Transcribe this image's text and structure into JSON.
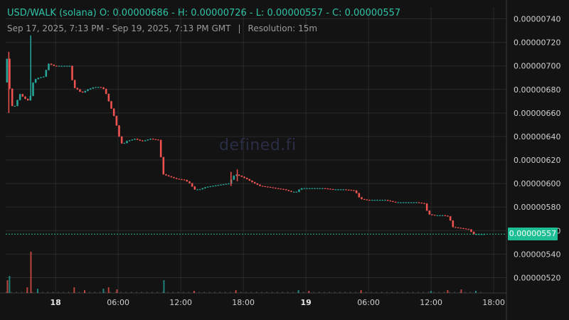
{
  "header": {
    "pair": "USD/WALK (solana)",
    "ohlc": "O: 0.00000686 - H: 0.00000726 - L: 0.00000557 - C: 0.00000557",
    "range": "Sep 17, 2025, 7:13 PM - Sep 19, 2025, 7:13 PM GMT",
    "separator": "|",
    "resolution": "Resolution: 15m"
  },
  "watermark": "defined.fi",
  "last_price_label": "0.00000557",
  "colors": {
    "up": "#26a69a",
    "down": "#ef5350",
    "bg": "#131313",
    "grid": "#2a2a2a",
    "tag": "#1fbf95"
  },
  "chart_data": {
    "type": "candlestick",
    "xlabels": [
      {
        "h": 4.78,
        "label": "18",
        "bold": true
      },
      {
        "h": 10.78,
        "label": "06:00"
      },
      {
        "h": 16.78,
        "label": "12:00"
      },
      {
        "h": 22.78,
        "label": "18:00"
      },
      {
        "h": 28.78,
        "label": "19",
        "bold": true
      },
      {
        "h": 34.78,
        "label": "06:00"
      },
      {
        "h": 40.78,
        "label": "12:00"
      },
      {
        "h": 46.78,
        "label": "18:00"
      }
    ],
    "yticks": [
      "0.00000520",
      "0.00000540",
      "0.00000560",
      "0.00000580",
      "0.00000600",
      "0.00000620",
      "0.00000640",
      "0.00000660",
      "0.00000680",
      "0.00000700",
      "0.00000720",
      "0.00000740"
    ],
    "ylim": [
      5.07e-06,
      7.5e-06
    ],
    "xlim_hours": [
      0,
      48
    ],
    "last_price": 5.57e-06,
    "anchors": [
      [
        0.0,
        6.86
      ],
      [
        0.3,
        7.1
      ],
      [
        0.6,
        6.66
      ],
      [
        1.0,
        6.66
      ],
      [
        1.5,
        6.76
      ],
      [
        2.0,
        6.72
      ],
      [
        2.4,
        6.7
      ],
      [
        2.8,
        6.88
      ],
      [
        3.3,
        6.9
      ],
      [
        3.8,
        6.91
      ],
      [
        4.2,
        7.02
      ],
      [
        4.8,
        7.0
      ],
      [
        5.5,
        7.0
      ],
      [
        6.3,
        7.0
      ],
      [
        6.6,
        6.82
      ],
      [
        7.0,
        6.8
      ],
      [
        7.4,
        6.77
      ],
      [
        8.0,
        6.8
      ],
      [
        8.6,
        6.82
      ],
      [
        9.2,
        6.82
      ],
      [
        9.6,
        6.8
      ],
      [
        10.2,
        6.65
      ],
      [
        10.6,
        6.55
      ],
      [
        11.0,
        6.4
      ],
      [
        11.3,
        6.33
      ],
      [
        11.7,
        6.36
      ],
      [
        12.5,
        6.38
      ],
      [
        13.2,
        6.36
      ],
      [
        14.0,
        6.38
      ],
      [
        14.8,
        6.37
      ],
      [
        15.2,
        6.08
      ],
      [
        15.8,
        6.06
      ],
      [
        16.5,
        6.04
      ],
      [
        17.3,
        6.03
      ],
      [
        17.8,
        6.0
      ],
      [
        18.2,
        5.95
      ],
      [
        18.7,
        5.95
      ],
      [
        19.3,
        5.97
      ],
      [
        20.0,
        5.98
      ],
      [
        20.7,
        5.99
      ],
      [
        21.5,
        6.0
      ],
      [
        22.1,
        6.08
      ],
      [
        22.7,
        6.06
      ],
      [
        23.2,
        6.04
      ],
      [
        23.8,
        6.01
      ],
      [
        24.5,
        5.98
      ],
      [
        25.3,
        5.97
      ],
      [
        26.0,
        5.96
      ],
      [
        26.8,
        5.95
      ],
      [
        27.5,
        5.93
      ],
      [
        28.0,
        5.93
      ],
      [
        28.4,
        5.96
      ],
      [
        29.5,
        5.96
      ],
      [
        30.5,
        5.96
      ],
      [
        31.5,
        5.95
      ],
      [
        32.5,
        5.95
      ],
      [
        33.6,
        5.94
      ],
      [
        34.1,
        5.87
      ],
      [
        34.8,
        5.86
      ],
      [
        35.5,
        5.86
      ],
      [
        36.5,
        5.86
      ],
      [
        37.5,
        5.84
      ],
      [
        38.5,
        5.84
      ],
      [
        39.5,
        5.84
      ],
      [
        40.3,
        5.83
      ],
      [
        40.6,
        5.74
      ],
      [
        41.2,
        5.73
      ],
      [
        42.0,
        5.73
      ],
      [
        42.6,
        5.72
      ],
      [
        43.0,
        5.63
      ],
      [
        43.8,
        5.62
      ],
      [
        44.5,
        5.61
      ],
      [
        45.0,
        5.57
      ],
      [
        46.0,
        5.57
      ]
    ],
    "spikes": [
      [
        0.3,
        7.12,
        6.6
      ],
      [
        2.4,
        6.74,
        7.26
      ],
      [
        21.6,
        6.1,
        5.98
      ],
      [
        22.2,
        6.12,
        6.02
      ]
    ],
    "volume_bars": [
      [
        0.1,
        18
      ],
      [
        0.3,
        24
      ],
      [
        2.0,
        8
      ],
      [
        2.35,
        58
      ],
      [
        3.0,
        6
      ],
      [
        6.5,
        8
      ],
      [
        7.5,
        4
      ],
      [
        9.3,
        6
      ],
      [
        9.8,
        8
      ],
      [
        10.6,
        5
      ],
      [
        15.1,
        18
      ],
      [
        18.0,
        3
      ],
      [
        22.0,
        4
      ],
      [
        28.0,
        4
      ],
      [
        29.0,
        3
      ],
      [
        34.0,
        4
      ],
      [
        40.7,
        3
      ],
      [
        42.3,
        4
      ],
      [
        43.6,
        5
      ],
      [
        45.0,
        3
      ]
    ]
  }
}
